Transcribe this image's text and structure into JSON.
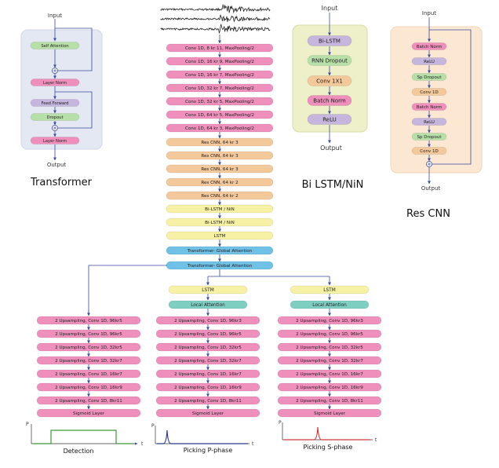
{
  "colors": {
    "pink": "#ee8fbc",
    "orange": "#f3c89a",
    "yellow": "#f6f1a4",
    "blue": "#6fc1e6",
    "teal": "#7ecfc2",
    "lavender": "#c6b5dc",
    "green": "#b7dfa8",
    "arrow": "#3b4aa1",
    "transformer_panel": "#e3e8f2",
    "bilstm_panel": "#eef0c9",
    "rescnn_panel": "#fbe7d2",
    "det_curve": "#3a9a3a",
    "p_curve": "#2a3c8a",
    "s_curve": "#d63a3a"
  },
  "transformer": {
    "title": "Transformer",
    "input": "Input",
    "output": "Output",
    "blocks": [
      "Self Attention",
      "Layer Norm",
      "Feed Forward",
      "Dropout",
      "Layer Norm"
    ]
  },
  "bilstm": {
    "title": "Bi LSTM/NiN",
    "input": "Input",
    "output": "Output",
    "blocks": [
      "Bi-LSTM",
      "RNN Dropout",
      "Conv 1X1",
      "Batch Norm",
      "ReLU"
    ]
  },
  "rescnn": {
    "title": "Res CNN",
    "input": "Input",
    "output": "Output",
    "blocks": [
      "Batch Norm",
      "ReLU",
      "Sp Dropout",
      "Conv 1D",
      "Batch Norm",
      "ReLU",
      "Sp Dropout",
      "Conv 1D"
    ]
  },
  "encoder": [
    "Conv 1D, 8 kr 11, MaxPooling/2",
    "Conv 1D, 16 kr 9, MaxPooling/2",
    "Conv 1D, 16 kr 7, MaxPooling/2",
    "Conv 1D, 32 kr 7, MaxPooling/2",
    "Conv 1D, 32 kr 5, MaxPooling/2",
    "Conv 1D, 64 kr 5, MaxPooling/2",
    "Conv 1D, 64 kr 3, MaxPooling/2",
    "Res CNN, 64 kr 3",
    "Res CNN, 64 kr 3",
    "Res CNN, 64 kr 3",
    "Res CNN, 64 kr 2",
    "Res CNN, 64 kr 2",
    "Bi-LSTM / NiN",
    "Bi-LSTM / NiN",
    "LSTM",
    "Transformer- Global Attention",
    "Transformer- Global Attention"
  ],
  "branches": {
    "lstm": "LSTM",
    "local_attention": "Local Attention",
    "decoder_detection": [
      "2 Upsampling, Conv 1D, 96kr5",
      "2 Upsampling, Conv 1D, 96kr5",
      "2 Upsampling, Conv 1D, 32kr5",
      "2 Upsampling, Conv 1D, 32kr7",
      "2 Upsampling, Conv 1D, 16kr7",
      "2 Upsampling, Conv 1D, 16kr9",
      "2 Upsampling, Conv 1D, 8kr11",
      "Sigmoid Layer"
    ],
    "decoder_picking": [
      "2 Upsampling, Conv 1D, 96kr3",
      "2 Upsampling, Conv 1D, 96kr5",
      "2 Upsampling, Conv 1D, 32kr5",
      "2 Upsampling, Conv 1D, 32kr7",
      "2 Upsampling, Conv 1D, 16kr7",
      "2 Upsampling, Conv 1D, 16kr9",
      "2 Upsampling, Conv 1D, 8kr11",
      "Sigmoid Layer"
    ]
  },
  "outputs": {
    "detection": "Detection",
    "p_phase": "Picking P-phase",
    "s_phase": "Picking S-phase",
    "y_det": "P",
    "y_p": "P",
    "y_s": "P",
    "x_axis": "t"
  }
}
